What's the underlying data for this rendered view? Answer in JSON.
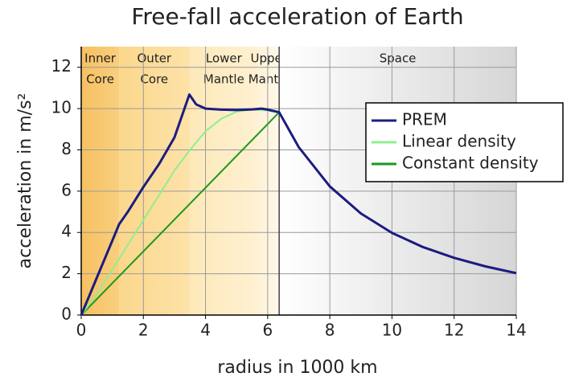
{
  "chart_data": {
    "type": "line",
    "title": "Free-fall acceleration of Earth",
    "xlabel": "radius in 1000 km",
    "ylabel": "acceleration in m/s²",
    "xlim": [
      0,
      14
    ],
    "ylim": [
      0,
      13
    ],
    "xticks": [
      0,
      2,
      4,
      6,
      8,
      10,
      12,
      14
    ],
    "yticks": [
      0,
      2,
      4,
      6,
      8,
      10,
      12
    ],
    "grid": true,
    "legend": "upper right",
    "regions": [
      {
        "label": [
          "Inner",
          "Core"
        ],
        "start": 0,
        "end": 1.22,
        "colors": [
          "#f6c061",
          "#f9cf7e"
        ]
      },
      {
        "label": [
          "Outer",
          "Core"
        ],
        "start": 1.22,
        "end": 3.48,
        "colors": [
          "#fbd78c",
          "#fde2a8"
        ]
      },
      {
        "label": [
          "Lower",
          "Mantle"
        ],
        "start": 3.48,
        "end": 5.7,
        "colors": [
          "#fde8b8",
          "#fef1d2"
        ]
      },
      {
        "label": [
          "Upper",
          "Mantle"
        ],
        "start": 5.7,
        "end": 6.37,
        "colors": [
          "#fef2d6",
          "#fff8ea"
        ]
      },
      {
        "label": [
          "Space"
        ],
        "start": 6.37,
        "end": 14,
        "colors": [
          "#ffffff",
          "#d6d6d6"
        ]
      }
    ],
    "series": [
      {
        "name": "PREM",
        "color": "#1c1c80",
        "x": [
          0,
          0.5,
          1,
          1.22,
          1.5,
          2,
          2.5,
          3,
          3.48,
          3.7,
          4,
          4.5,
          5,
          5.5,
          5.8,
          6,
          6.37,
          7,
          8,
          9,
          10,
          11,
          12,
          13,
          14
        ],
        "values": [
          0,
          1.8,
          3.6,
          4.4,
          5.0,
          6.2,
          7.3,
          8.6,
          10.68,
          10.2,
          10.0,
          9.95,
          9.93,
          9.96,
          10.0,
          9.95,
          9.82,
          8.13,
          6.23,
          4.92,
          3.98,
          3.29,
          2.77,
          2.36,
          2.03
        ]
      },
      {
        "name": "Linear density",
        "color": "#90ee90",
        "x": [
          0,
          0.5,
          1,
          1.5,
          2,
          2.5,
          3,
          3.5,
          4,
          4.5,
          5,
          5.5,
          6,
          6.37
        ],
        "values": [
          0,
          1.0,
          2.2,
          3.4,
          4.6,
          5.8,
          7.0,
          8.0,
          8.9,
          9.5,
          9.85,
          9.95,
          9.9,
          9.82
        ]
      },
      {
        "name": "Constant density",
        "color": "#1a9a1a",
        "x": [
          0,
          6.37
        ],
        "values": [
          0,
          9.82
        ]
      }
    ]
  }
}
